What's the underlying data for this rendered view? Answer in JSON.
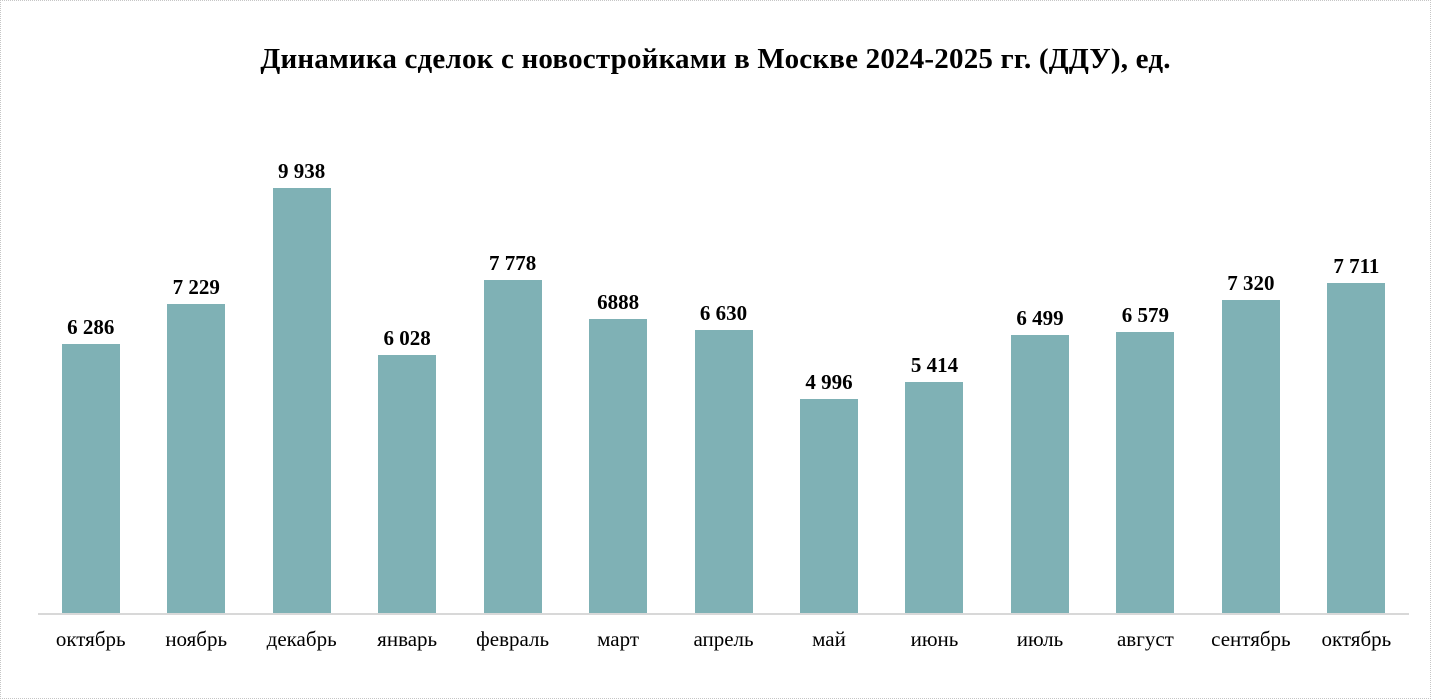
{
  "chart_data": {
    "type": "bar",
    "title": "Динамика сделок с новостройками в Москве 2024-2025 гг. (ДДУ), ед.",
    "categories": [
      "октябрь",
      "ноябрь",
      "декабрь",
      "январь",
      "февраль",
      "март",
      "апрель",
      "май",
      "июнь",
      "июль",
      "август",
      "сентябрь",
      "октябрь"
    ],
    "values": [
      6286,
      7229,
      9938,
      6028,
      7778,
      6888,
      6630,
      4996,
      5414,
      6499,
      6579,
      7320,
      7711
    ],
    "value_labels": [
      "6 286",
      "7 229",
      "9 938",
      "6 028",
      "7 778",
      "6888",
      "6 630",
      "4 996",
      "5 414",
      "6 499",
      "6 579",
      "7 320",
      "7 711"
    ],
    "xlabel": "",
    "ylabel": "",
    "ylim": [
      0,
      12000
    ],
    "grid": false,
    "legend": false,
    "bar_color": "#7FB1B5",
    "axis_line_color": "#d8d8d8",
    "data_label_position": "above-bars"
  }
}
